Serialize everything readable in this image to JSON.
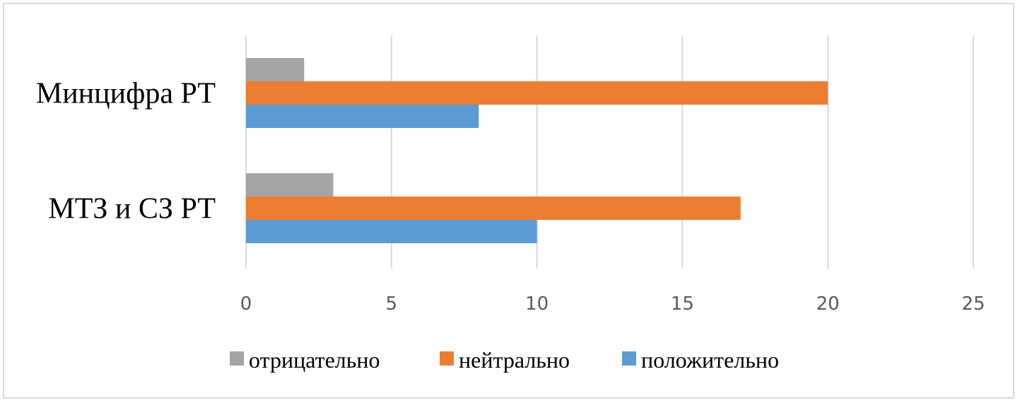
{
  "chart_data": {
    "type": "bar",
    "orientation": "horizontal",
    "categories": [
      "Минцифра РТ",
      "МТЗ и СЗ РТ"
    ],
    "series": [
      {
        "name": "отрицательно",
        "color": "#a5a5a5",
        "values": [
          2,
          3
        ]
      },
      {
        "name": "нейтрально",
        "color": "#ed7d31",
        "values": [
          20,
          17
        ]
      },
      {
        "name": "положительно",
        "color": "#5b9bd5",
        "values": [
          8,
          10
        ]
      }
    ],
    "xlim": [
      0,
      25
    ],
    "xticks": [
      "0",
      "5",
      "10",
      "15",
      "20",
      "25"
    ],
    "grid": true,
    "legend_position": "bottom"
  }
}
